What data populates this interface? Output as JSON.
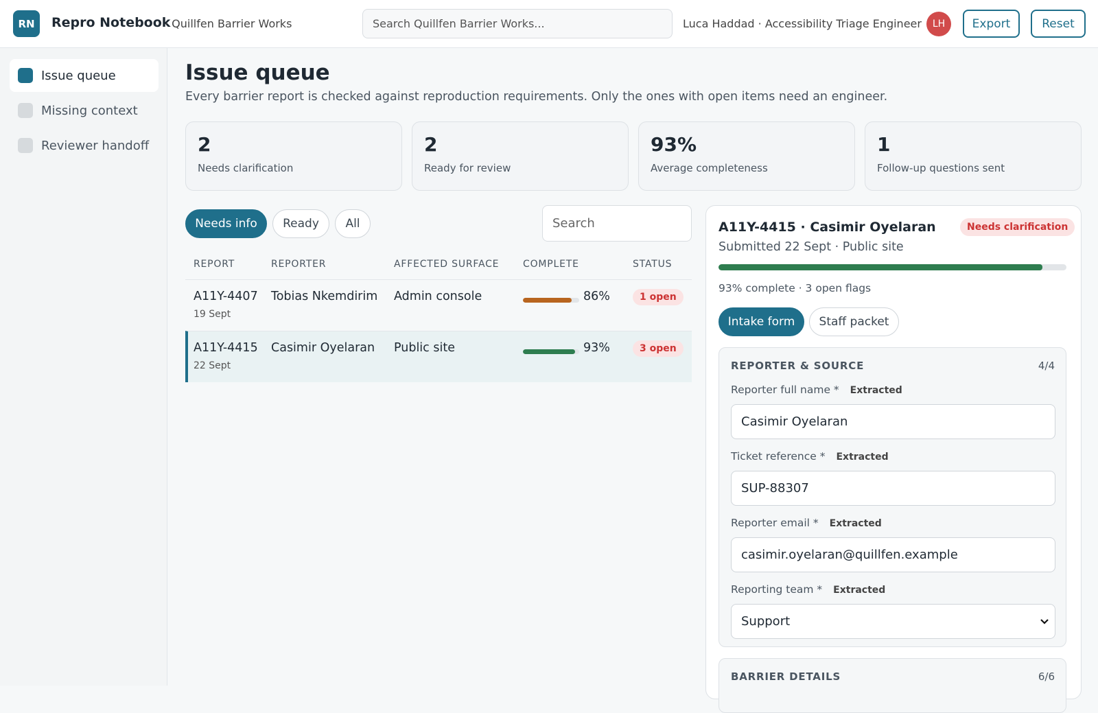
{
  "header": {
    "logo": "RN",
    "app": "Repro Notebook",
    "org": "· Quillfen Barrier Works",
    "search_placeholder": "Search Quillfen Barrier Works...",
    "user": "Luca Haddad · Accessibility Triage Engineer",
    "avatar": "LH",
    "buttons": [
      "Export",
      "Reset"
    ]
  },
  "sidebar": [
    "Issue queue",
    "Missing context",
    "Reviewer handoff"
  ],
  "page": {
    "title": "Issue queue",
    "subtitle": "Every barrier report is checked against reproduction requirements. Only the ones with open items need an engineer."
  },
  "stats": [
    {
      "value": "2",
      "label": "Needs clarification"
    },
    {
      "value": "2",
      "label": "Ready for review"
    },
    {
      "value": "93%",
      "label": "Average completeness"
    },
    {
      "value": "1",
      "label": "Follow-up questions sent"
    }
  ],
  "filters": [
    "Needs info",
    "Ready",
    "All"
  ],
  "search_placeholder": "Search",
  "table": {
    "columns": [
      "REPORT",
      "REPORTER",
      "AFFECTED SURFACE",
      "COMPLETE",
      "STATUS"
    ],
    "rows": [
      {
        "id": "A11Y-4407",
        "date": "19 Sept",
        "reporter": "Tobias Nkemdirim",
        "surface": "Admin console",
        "complete": {
          "value": 86,
          "label": "86%"
        },
        "status": "1 open"
      },
      {
        "id": "A11Y-4415",
        "date": "22 Sept",
        "reporter": "Casimir Oyelaran",
        "surface": "Public site",
        "complete": {
          "value": 93,
          "label": "93%"
        },
        "status": "3 open"
      }
    ]
  },
  "detail": {
    "title": "A11Y-4415 · Casimir Oyelaran",
    "badge": "Needs clarification",
    "meta": "Submitted 22 Sept · Public site",
    "progress": {
      "value": 93,
      "label": "93% complete · 3 open flags"
    },
    "tabs": [
      "Intake form",
      "Staff packet"
    ],
    "sections": [
      {
        "title": "REPORTER & SOURCE",
        "count": "4/4",
        "fields": [
          {
            "label": "Reporter full name *",
            "tag": "Extracted",
            "value": "Casimir Oyelaran"
          },
          {
            "label": "Ticket reference *",
            "tag": "Extracted",
            "value": "SUP-88307"
          },
          {
            "label": "Reporter email *",
            "tag": "Extracted",
            "value": "casimir.oyelaran@quillfen.example"
          },
          {
            "label": "Reporting team *",
            "tag": "Extracted",
            "value": "Support"
          }
        ]
      },
      {
        "title": "BARRIER DETAILS",
        "count": "6/6"
      }
    ]
  }
}
